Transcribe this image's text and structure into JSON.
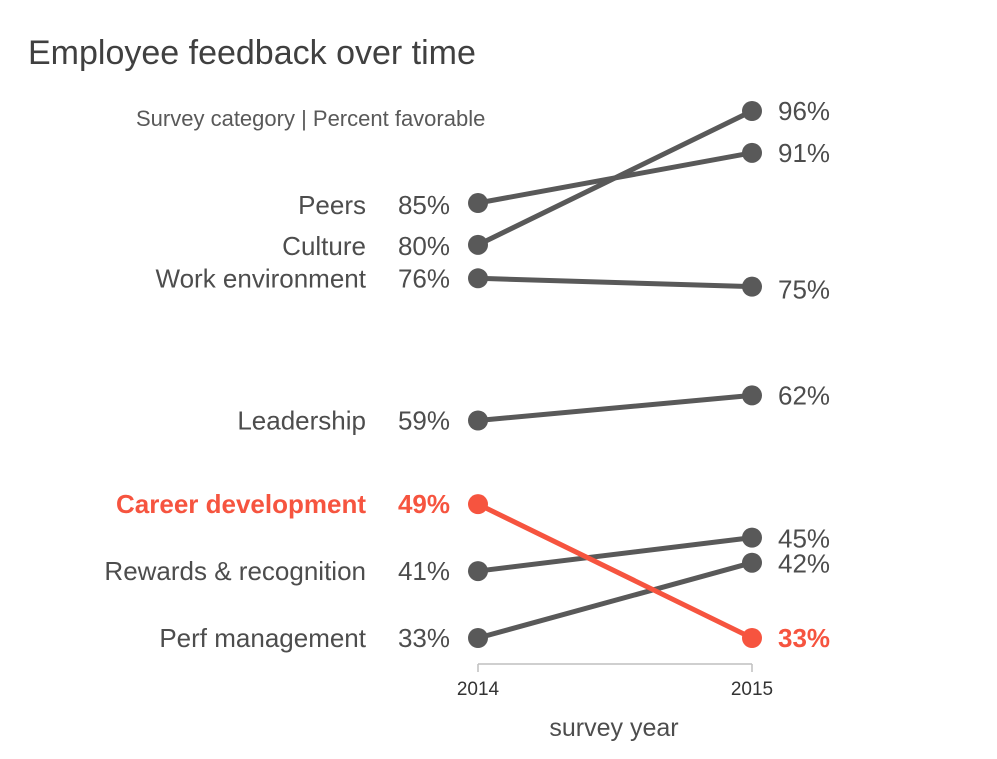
{
  "chart_data": {
    "type": "line",
    "title": "Employee feedback over time",
    "subtitle": "Survey category | Percent favorable",
    "xlabel": "survey year",
    "ylabel": "",
    "x": [
      "2014",
      "2015"
    ],
    "ylim": [
      33,
      96
    ],
    "grid": false,
    "value_suffix": "%",
    "colors": {
      "default": "#595959",
      "highlight": "#f6543f",
      "text": "#4d4d4d",
      "axis": "#bfbfbf"
    },
    "series": [
      {
        "name": "Peers",
        "values": [
          85,
          91
        ],
        "highlight": false
      },
      {
        "name": "Culture",
        "values": [
          80,
          96
        ],
        "highlight": false
      },
      {
        "name": "Work environment",
        "values": [
          76,
          75
        ],
        "highlight": false
      },
      {
        "name": "Leadership",
        "values": [
          59,
          62
        ],
        "highlight": false
      },
      {
        "name": "Career development",
        "values": [
          49,
          33
        ],
        "highlight": true
      },
      {
        "name": "Rewards & recognition",
        "values": [
          41,
          45
        ],
        "highlight": false
      },
      {
        "name": "Perf management",
        "values": [
          33,
          42
        ],
        "highlight": false
      }
    ]
  }
}
